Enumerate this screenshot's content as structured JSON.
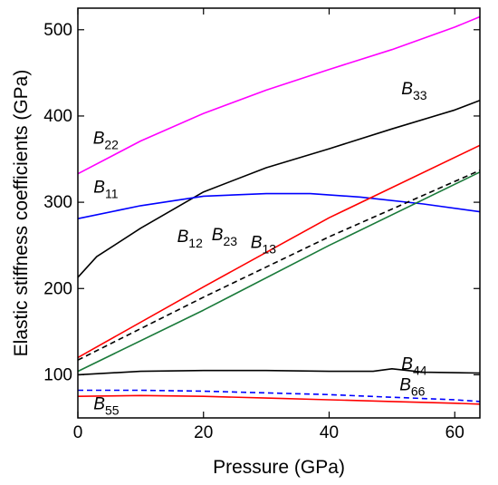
{
  "chart_data": {
    "type": "line",
    "title": "",
    "xlabel": "Pressure (GPa)",
    "ylabel": "Elastic stiffness coefficients (GPa)",
    "xlim": [
      0,
      64
    ],
    "ylim": [
      50,
      525
    ],
    "xticks": [
      0,
      20,
      40,
      60
    ],
    "yticks": [
      100,
      200,
      300,
      400,
      500
    ],
    "grid": false,
    "legend": "none (series labeled inline)",
    "series": [
      {
        "name": "B22",
        "label_main": "B",
        "label_sub": "22",
        "color": "#ff00ff",
        "dash": false,
        "x": [
          0,
          10,
          20,
          30,
          40,
          50,
          60,
          64
        ],
        "y": [
          333,
          371,
          403,
          430,
          454,
          477,
          503,
          515
        ]
      },
      {
        "name": "B33",
        "label_main": "B",
        "label_sub": "33",
        "color": "#000000",
        "dash": false,
        "x": [
          0,
          3,
          10,
          20,
          30,
          40,
          50,
          60,
          64
        ],
        "y": [
          213,
          237,
          270,
          312,
          340,
          362,
          385,
          407,
          418
        ]
      },
      {
        "name": "B11",
        "label_main": "B",
        "label_sub": "11",
        "color": "#0000ff",
        "dash": false,
        "x": [
          0,
          10,
          20,
          30,
          37,
          45,
          55,
          64
        ],
        "y": [
          281,
          296,
          307,
          310,
          310,
          306,
          298,
          289
        ]
      },
      {
        "name": "B12",
        "label_main": "B",
        "label_sub": "12",
        "color": "#ff0000",
        "dash": false,
        "x": [
          0,
          20,
          40,
          64
        ],
        "y": [
          120,
          202,
          282,
          366
        ]
      },
      {
        "name": "B23",
        "label_main": "B",
        "label_sub": "23",
        "color": "#000000",
        "dash": true,
        "x": [
          0,
          20,
          40,
          64
        ],
        "y": [
          117,
          190,
          260,
          337
        ]
      },
      {
        "name": "B13",
        "label_main": "B",
        "label_sub": "13",
        "color": "#1a7a3a",
        "dash": false,
        "x": [
          0,
          20,
          40,
          64
        ],
        "y": [
          104,
          175,
          250,
          335
        ]
      },
      {
        "name": "B44",
        "label_main": "B",
        "label_sub": "44",
        "color": "#000000",
        "dash": false,
        "x": [
          0,
          10,
          20,
          30,
          40,
          47,
          50,
          55,
          64
        ],
        "y": [
          100,
          104,
          105,
          105,
          104,
          104,
          107,
          103,
          102
        ]
      },
      {
        "name": "B66",
        "label_main": "B",
        "label_sub": "66",
        "color": "#0000ff",
        "dash": true,
        "x": [
          0,
          10,
          20,
          30,
          40,
          50,
          60,
          64
        ],
        "y": [
          82,
          82,
          81,
          79,
          77,
          74,
          71,
          69
        ]
      },
      {
        "name": "B55",
        "label_main": "B",
        "label_sub": "55",
        "color": "#ff0000",
        "dash": false,
        "x": [
          0,
          10,
          20,
          30,
          40,
          50,
          60,
          64
        ],
        "y": [
          75,
          76,
          75,
          73,
          71,
          69,
          67,
          66
        ]
      }
    ]
  }
}
